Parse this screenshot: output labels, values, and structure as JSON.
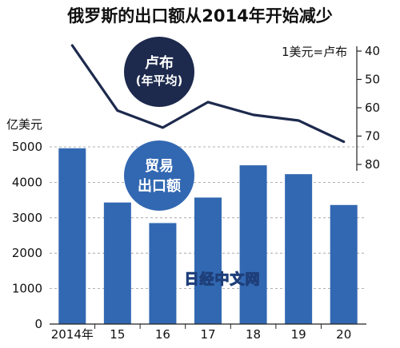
{
  "title": "俄罗斯的出口额从2014年开始减少",
  "watermark": "日经中文网",
  "colors": {
    "bar": "#3268b2",
    "line": "#1d2a4d",
    "ruble_bubble": "#1d2a4d",
    "trade_bubble": "#3268b2",
    "grid": "#999999"
  },
  "bubbles": {
    "ruble": {
      "line1": "卢布",
      "line2": "(年平均)"
    },
    "trade": {
      "line1": "贸易",
      "line2": "出口额"
    }
  },
  "chart_data": {
    "type": "bar+line",
    "categories": [
      "2014年",
      "15",
      "16",
      "17",
      "18",
      "19",
      "20"
    ],
    "left_axis": {
      "unit_label": "亿美元",
      "ylim": [
        0,
        5000
      ],
      "ticks": [
        "0",
        "1000",
        "2000",
        "3000",
        "4000",
        "5000"
      ]
    },
    "right_axis": {
      "unit_label": "1美元=卢布",
      "inverted": true,
      "ylim": [
        40,
        80
      ],
      "ticks": [
        "40",
        "50",
        "60",
        "70",
        "80"
      ]
    },
    "series": [
      {
        "name": "贸易 出口额",
        "type": "bar",
        "axis": "left",
        "values": [
          4960,
          3430,
          2850,
          3570,
          4480,
          4230,
          3360
        ]
      },
      {
        "name": "卢布 (年平均)",
        "type": "line",
        "axis": "right",
        "values": [
          38,
          61,
          67,
          58,
          62.5,
          64.5,
          72
        ]
      }
    ],
    "grid": "horizontal dashed lines at left-axis ticks"
  }
}
